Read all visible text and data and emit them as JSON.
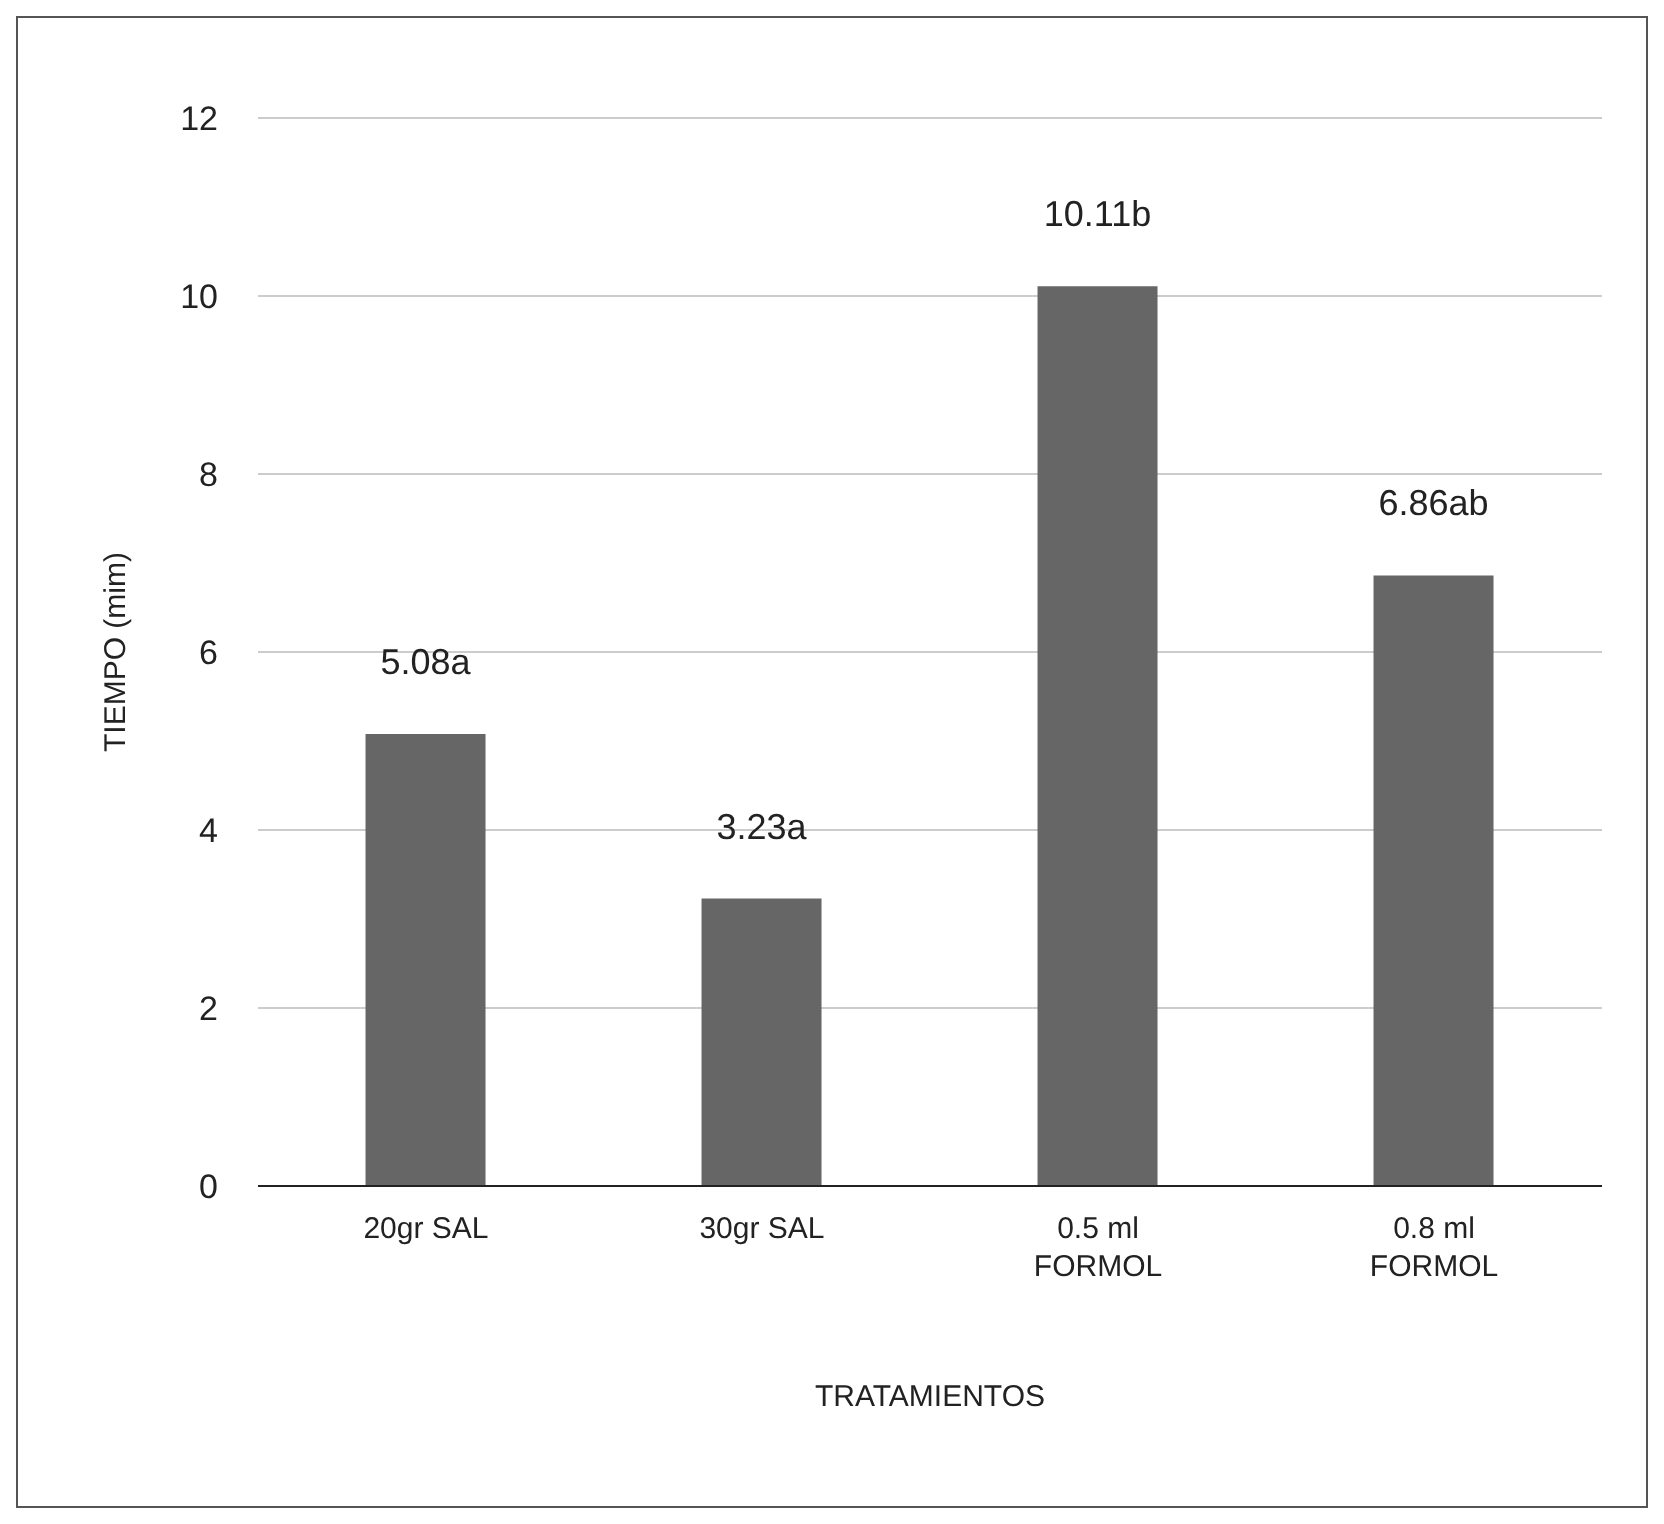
{
  "chart_data": {
    "type": "bar",
    "xlabel": "TRATAMIENTOS",
    "ylabel": "TIEMPO (mim)",
    "categories": [
      "20gr SAL",
      "30gr SAL",
      "0.5 ml FORMOL",
      "0.8 ml FORMOL"
    ],
    "values": [
      5.08,
      3.23,
      10.11,
      6.86
    ],
    "value_labels": [
      "5.08a",
      "3.23a",
      "10.11b",
      "6.86ab"
    ],
    "color": "#666666",
    "ylim": [
      0,
      12
    ],
    "yticks": [
      0,
      2,
      4,
      6,
      8,
      10,
      12
    ],
    "grid": "y"
  }
}
